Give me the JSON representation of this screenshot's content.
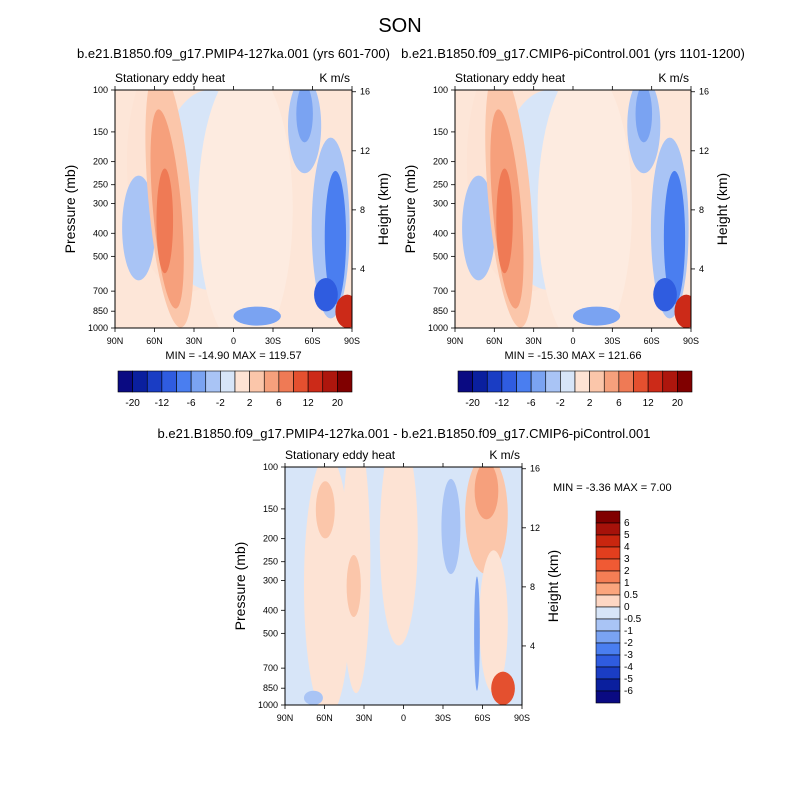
{
  "figure": {
    "season": "SON",
    "diff_title": "b.e21.B1850.f09_g17.PMIP4-127ka.001 - b.e21.B1850.f09_g17.CMIP6-piControl.001"
  },
  "chart_data": [
    {
      "type": "heatmap",
      "panel": "top-left",
      "title": "b.e21.B1850.f09_g17.PMIP4-127ka.001 (yrs 601-700)",
      "left_string": "Stationary eddy heat",
      "right_string": "K m/s",
      "xlabel": "",
      "ylabel": "Pressure (mb)",
      "y2label": "Height (km)",
      "x_ticks": [
        "90N",
        "60N",
        "30N",
        "0",
        "30S",
        "60S",
        "90S"
      ],
      "y_ticks": [
        "100",
        "150",
        "200",
        "250",
        "300",
        "400",
        "500",
        "700",
        "850",
        "1000"
      ],
      "y2_ticks": [
        "16",
        "12",
        "8",
        "4"
      ],
      "min_max_text": "MIN = -14.90   MAX = 119.57",
      "contour_levels": [
        -20,
        -16,
        -12,
        -8,
        -6,
        -4,
        -2,
        -1,
        1,
        2,
        4,
        6,
        8,
        12,
        16,
        20
      ],
      "colorbar_labels": [
        "-20",
        "-12",
        "-6",
        "-2",
        "2",
        "6",
        "12",
        "20"
      ]
    },
    {
      "type": "heatmap",
      "panel": "top-right",
      "title": "b.e21.B1850.f09_g17.CMIP6-piControl.001 (yrs 1101-1200)",
      "left_string": "Stationary eddy heat",
      "right_string": "K m/s",
      "xlabel": "",
      "ylabel": "Pressure (mb)",
      "y2label": "Height (km)",
      "x_ticks": [
        "90N",
        "60N",
        "30N",
        "0",
        "30S",
        "60S",
        "90S"
      ],
      "y_ticks": [
        "100",
        "150",
        "200",
        "250",
        "300",
        "400",
        "500",
        "700",
        "850",
        "1000"
      ],
      "y2_ticks": [
        "16",
        "12",
        "8",
        "4"
      ],
      "min_max_text": "MIN = -15.30   MAX = 121.66",
      "contour_levels": [
        -20,
        -16,
        -12,
        -8,
        -6,
        -4,
        -2,
        -1,
        1,
        2,
        4,
        6,
        8,
        12,
        16,
        20
      ],
      "colorbar_labels": [
        "-20",
        "-12",
        "-6",
        "-2",
        "2",
        "6",
        "12",
        "20"
      ]
    },
    {
      "type": "heatmap",
      "panel": "bottom-difference",
      "left_string": "Stationary eddy heat",
      "right_string": "K m/s",
      "xlabel": "",
      "ylabel": "Pressure (mb)",
      "y2label": "Height (km)",
      "x_ticks": [
        "90N",
        "60N",
        "30N",
        "0",
        "30S",
        "60S",
        "90S"
      ],
      "y_ticks": [
        "100",
        "150",
        "200",
        "250",
        "300",
        "400",
        "500",
        "700",
        "850",
        "1000"
      ],
      "y2_ticks": [
        "16",
        "12",
        "8",
        "4"
      ],
      "min_max_text": "MIN =  -3.36   MAX =   7.00",
      "contour_levels": [
        -6,
        -5,
        -4,
        -3,
        -2,
        -1,
        -0.5,
        0,
        0.5,
        1,
        2,
        3,
        4,
        5,
        6
      ],
      "colorbar_labels": [
        "6",
        "5",
        "4",
        "3",
        "2",
        "1",
        "0.5",
        "0",
        "-0.5",
        "-1",
        "-2",
        "-3",
        "-4",
        "-5",
        "-6"
      ]
    }
  ],
  "colormap_16": [
    "#0a0a82",
    "#0a1f9e",
    "#1a3dc4",
    "#2f5ce0",
    "#4a7ef0",
    "#7aa3f2",
    "#a9c4f5",
    "#d7e5f8",
    "#fde3d4",
    "#fbc6aa",
    "#f6a07c",
    "#ef7a55",
    "#e4502f",
    "#cc2a18",
    "#ad160d",
    "#800000"
  ]
}
